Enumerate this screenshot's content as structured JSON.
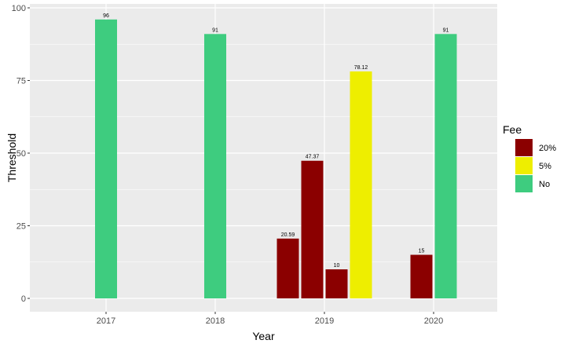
{
  "chart_data": {
    "type": "bar",
    "title": "",
    "xlabel": "Year",
    "ylabel": "Threshold",
    "ylim": [
      0,
      100
    ],
    "yticks": [
      0,
      25,
      50,
      75,
      100
    ],
    "categories": [
      "2017",
      "2018",
      "2019",
      "2020"
    ],
    "legend": {
      "title": "Fee",
      "placement": "right",
      "entries": [
        {
          "label": "20%",
          "color": "#8B0000"
        },
        {
          "label": "5%",
          "color": "#EEEE00"
        },
        {
          "label": "No",
          "color": "#3ECC7F"
        }
      ]
    },
    "bars": [
      {
        "year": "2017",
        "fee": "No",
        "value": 96,
        "label": "96"
      },
      {
        "year": "2018",
        "fee": "No",
        "value": 91,
        "label": "91"
      },
      {
        "year": "2019",
        "fee": "20%",
        "value": 20.59,
        "label": "20.59"
      },
      {
        "year": "2019",
        "fee": "20%",
        "value": 47.37,
        "label": "47.37"
      },
      {
        "year": "2019",
        "fee": "20%",
        "value": 10,
        "label": "10"
      },
      {
        "year": "2019",
        "fee": "5%",
        "value": 78.12,
        "label": "78.12"
      },
      {
        "year": "2020",
        "fee": "20%",
        "value": 15,
        "label": "15"
      },
      {
        "year": "2020",
        "fee": "No",
        "value": 91,
        "label": "91"
      }
    ],
    "grid": true
  }
}
